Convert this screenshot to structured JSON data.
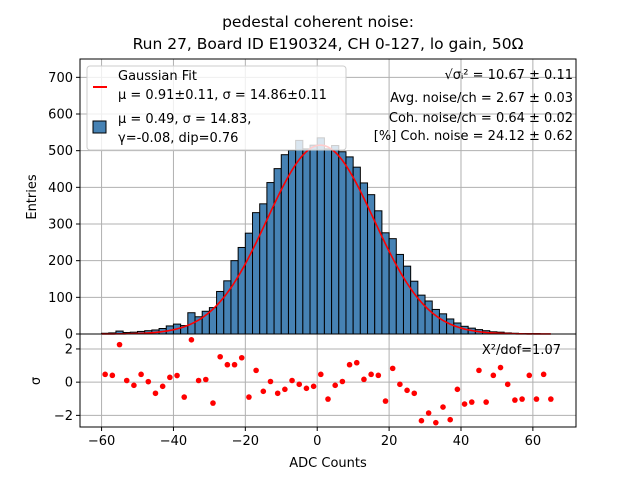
{
  "chart_data": [
    {
      "type": "bar",
      "panel": "histogram",
      "title_line1": "pedestal coherent noise:",
      "title_line2": "Run 27, Board ID E190324, CH 0-127, lo gain, 50Ω",
      "xlabel": "",
      "ylabel": "Entries",
      "xlim": [
        -66,
        72
      ],
      "ylim": [
        0,
        750
      ],
      "yticks": [
        0,
        100,
        200,
        300,
        400,
        500,
        600,
        700
      ],
      "xticks": [
        -60,
        -40,
        -20,
        0,
        20,
        40,
        60
      ],
      "grid": true,
      "bin_width": 2,
      "bin_centers": [
        -59,
        -57,
        -55,
        -53,
        -51,
        -49,
        -47,
        -45,
        -43,
        -41,
        -39,
        -37,
        -35,
        -33,
        -31,
        -29,
        -27,
        -25,
        -23,
        -21,
        -19,
        -17,
        -15,
        -13,
        -11,
        -9,
        -7,
        -5,
        -3,
        -1,
        1,
        3,
        5,
        7,
        9,
        11,
        13,
        15,
        17,
        19,
        21,
        23,
        25,
        27,
        29,
        31,
        33,
        35,
        37,
        39,
        41,
        43,
        45,
        47,
        49,
        51,
        53,
        55,
        57,
        59,
        61,
        63,
        65
      ],
      "values": [
        2,
        3,
        8,
        4,
        5,
        7,
        9,
        11,
        15,
        22,
        27,
        23,
        58,
        47,
        62,
        72,
        116,
        145,
        200,
        236,
        275,
        331,
        355,
        413,
        451,
        489,
        501,
        528,
        505,
        515,
        535,
        505,
        514,
        497,
        483,
        455,
        412,
        380,
        336,
        276,
        260,
        217,
        185,
        144,
        106,
        90,
        67,
        55,
        41,
        30,
        21,
        16,
        12,
        9,
        6,
        5,
        3,
        2,
        1,
        1,
        1,
        0,
        0
      ],
      "bar_color": "#4682b4",
      "fit": {
        "name": "Gaussian Fit",
        "mu": 0.91,
        "sigma": 14.86,
        "amplitude": 515,
        "x_range": [
          -60,
          65
        ],
        "color": "#ff0000"
      },
      "legend": {
        "placement": "top-left",
        "entries": [
          {
            "line1": "Gaussian Fit",
            "line2": "μ = 0.91±0.11, σ = 14.86±0.11",
            "marker": "red-line"
          },
          {
            "line1": "μ = 0.49, σ = 14.83,",
            "line2": "γ=-0.08, dip=0.76",
            "marker": "blue-box"
          }
        ]
      },
      "annotations": {
        "placement": "top-right",
        "lines": [
          {
            "prefix": "√σᵢ²",
            "text": " = 10.67 ± 0.11"
          },
          {
            "text": "Avg. noise/ch = 2.67 ± 0.03"
          },
          {
            "text": "Coh. noise/ch = 0.64 ± 0.02"
          },
          {
            "text": "[%] Coh. noise = 24.12  ± 0.62"
          }
        ]
      }
    },
    {
      "type": "scatter",
      "panel": "residuals",
      "xlabel": "ADC Counts",
      "ylabel": "σ",
      "xlim": [
        -66,
        72
      ],
      "ylim": [
        -2.7,
        2.9
      ],
      "yticks": [
        -2,
        0,
        2
      ],
      "ytick_labels": [
        "−2",
        "0",
        "2"
      ],
      "xticks": [
        -60,
        -40,
        -20,
        0,
        20,
        40,
        60
      ],
      "xtick_labels": [
        "−60",
        "−40",
        "−20",
        "0",
        "20",
        "40",
        "60"
      ],
      "grid": true,
      "point_color": "#ff0000",
      "annotation": "Χ²/dof=1.07",
      "x": [
        -59,
        -57,
        -55,
        -53,
        -51,
        -49,
        -47,
        -45,
        -43,
        -41,
        -39,
        -37,
        -35,
        -33,
        -31,
        -29,
        -27,
        -25,
        -23,
        -21,
        -19,
        -17,
        -15,
        -13,
        -11,
        -9,
        -7,
        -5,
        -3,
        -1,
        1,
        3,
        5,
        7,
        9,
        11,
        13,
        15,
        17,
        19,
        21,
        23,
        25,
        27,
        29,
        31,
        33,
        35,
        37,
        39,
        41,
        43,
        45,
        47,
        49,
        51,
        53,
        55,
        57,
        59,
        61,
        63,
        65
      ],
      "y": [
        0.47,
        0.41,
        2.26,
        0.1,
        -0.19,
        0.47,
        0.03,
        -0.67,
        -0.25,
        0.29,
        0.4,
        -0.9,
        2.55,
        0.1,
        0.16,
        -1.26,
        1.53,
        1.05,
        1.05,
        1.47,
        -0.9,
        0.71,
        -0.55,
        0.04,
        -0.67,
        -0.43,
        0.1,
        -0.13,
        -0.37,
        -0.25,
        0.47,
        -1.02,
        -0.19,
        0.04,
        1.05,
        1.17,
        0.17,
        0.47,
        0.41,
        -1.14,
        0.83,
        -0.13,
        -0.49,
        -0.67,
        -2.32,
        -1.86,
        -2.44,
        -1.5,
        -2.26,
        -0.43,
        -1.32,
        -1.2,
        0.71,
        -1.2,
        0.41,
        0.88,
        -0.13,
        -1.08,
        -1.02,
        0.41,
        -1.02,
        0.47,
        -1.02
      ]
    }
  ]
}
